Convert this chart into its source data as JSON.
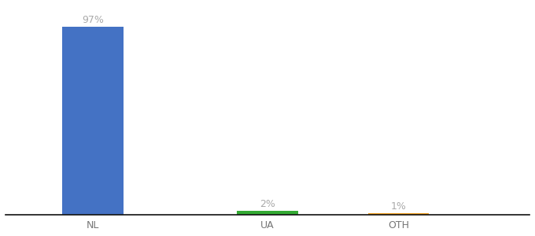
{
  "categories": [
    "NL",
    "UA",
    "OTH"
  ],
  "values": [
    97,
    2,
    1
  ],
  "bar_colors": [
    "#4472c4",
    "#33aa33",
    "#f0a020"
  ],
  "value_labels": [
    "97%",
    "2%",
    "1%"
  ],
  "ylim": [
    0,
    108
  ],
  "background_color": "#ffffff",
  "label_fontsize": 9,
  "value_fontsize": 9,
  "bar_width": 0.7,
  "x_positions": [
    1,
    3,
    4.5
  ],
  "xlim": [
    0,
    6
  ]
}
